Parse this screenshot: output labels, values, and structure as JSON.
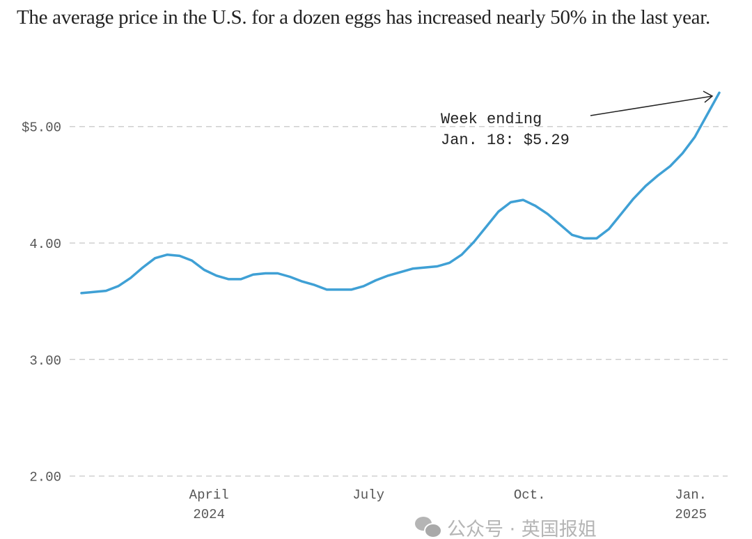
{
  "chart_data": {
    "type": "line",
    "title": "The average price in the U.S. for a dozen eggs has increased nearly 50% in the last year.",
    "xlabel": "",
    "ylabel": "",
    "ylim": [
      2.0,
      5.35
    ],
    "yticks": [
      2,
      3,
      4,
      5
    ],
    "ytick_labels": [
      "2.00",
      "3.00",
      "4.00",
      "$5.00"
    ],
    "xticks": [
      {
        "date": "2024-04-01",
        "label": "April",
        "sublabel": "2024"
      },
      {
        "date": "2024-07-01",
        "label": "July",
        "sublabel": ""
      },
      {
        "date": "2024-10-01",
        "label": "Oct.",
        "sublabel": ""
      },
      {
        "date": "2025-01-01",
        "label": "Jan.",
        "sublabel": "2025"
      }
    ],
    "grid": "horizontal dashed",
    "line_color": "#3fa0d5",
    "x": [
      "2024-01-20",
      "2024-01-27",
      "2024-02-03",
      "2024-02-10",
      "2024-02-17",
      "2024-02-24",
      "2024-03-02",
      "2024-03-09",
      "2024-03-16",
      "2024-03-23",
      "2024-03-30",
      "2024-04-06",
      "2024-04-13",
      "2024-04-20",
      "2024-04-27",
      "2024-05-04",
      "2024-05-11",
      "2024-05-18",
      "2024-05-25",
      "2024-06-01",
      "2024-06-08",
      "2024-06-15",
      "2024-06-22",
      "2024-06-29",
      "2024-07-06",
      "2024-07-13",
      "2024-07-20",
      "2024-07-27",
      "2024-08-03",
      "2024-08-10",
      "2024-08-17",
      "2024-08-24",
      "2024-08-31",
      "2024-09-07",
      "2024-09-14",
      "2024-09-21",
      "2024-09-28",
      "2024-10-05",
      "2024-10-12",
      "2024-10-19",
      "2024-10-26",
      "2024-11-02",
      "2024-11-09",
      "2024-11-16",
      "2024-11-23",
      "2024-11-30",
      "2024-12-07",
      "2024-12-14",
      "2024-12-21",
      "2024-12-28",
      "2025-01-04",
      "2025-01-11",
      "2025-01-18"
    ],
    "values": [
      3.57,
      3.58,
      3.59,
      3.63,
      3.7,
      3.79,
      3.87,
      3.9,
      3.89,
      3.85,
      3.77,
      3.72,
      3.69,
      3.69,
      3.73,
      3.74,
      3.74,
      3.71,
      3.67,
      3.64,
      3.6,
      3.6,
      3.6,
      3.63,
      3.68,
      3.72,
      3.75,
      3.78,
      3.79,
      3.8,
      3.83,
      3.9,
      4.01,
      4.14,
      4.27,
      4.35,
      4.37,
      4.32,
      4.25,
      4.16,
      4.07,
      4.04,
      4.04,
      4.12,
      4.25,
      4.38,
      4.49,
      4.58,
      4.66,
      4.77,
      4.91,
      5.1,
      5.29
    ],
    "annotation": {
      "line1": "Week ending",
      "line2": "Jan. 18: $5.29",
      "date": "2025-01-18",
      "value": 5.29
    }
  },
  "watermark": "公众号 · 英国报姐"
}
